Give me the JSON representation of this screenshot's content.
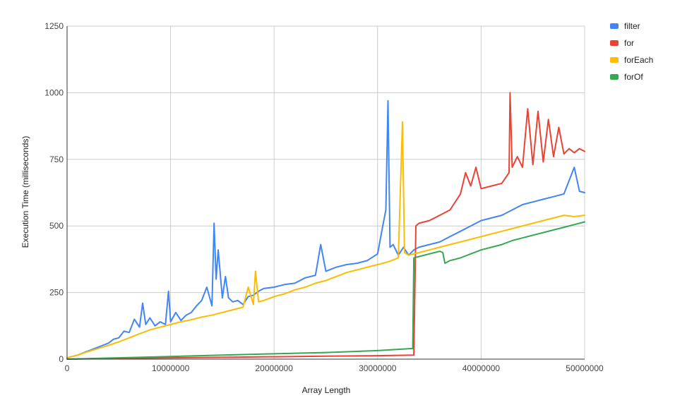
{
  "chart_data": {
    "type": "line",
    "xlabel": "Array Length",
    "ylabel": "Execution Time (milliseconds)",
    "xlim": [
      0,
      50000000
    ],
    "ylim": [
      0,
      1250
    ],
    "x_ticks": [
      0,
      10000000,
      20000000,
      30000000,
      40000000,
      50000000
    ],
    "x_tick_labels": [
      "0",
      "10000000",
      "20000000",
      "30000000",
      "40000000",
      "50000000"
    ],
    "y_ticks": [
      0,
      250,
      500,
      750,
      1000,
      1250
    ],
    "y_tick_labels": [
      "0",
      "250",
      "500",
      "750",
      "1000",
      "1250"
    ],
    "grid": true,
    "legend_position": "top-right",
    "series": [
      {
        "name": "filter",
        "color": "#4285F4",
        "points": [
          [
            0,
            5
          ],
          [
            1000000,
            15
          ],
          [
            2000000,
            30
          ],
          [
            3000000,
            45
          ],
          [
            4000000,
            60
          ],
          [
            4500000,
            75
          ],
          [
            5000000,
            80
          ],
          [
            5500000,
            105
          ],
          [
            6000000,
            100
          ],
          [
            6500000,
            150
          ],
          [
            7000000,
            120
          ],
          [
            7300000,
            210
          ],
          [
            7600000,
            130
          ],
          [
            8000000,
            155
          ],
          [
            8500000,
            125
          ],
          [
            9000000,
            140
          ],
          [
            9500000,
            130
          ],
          [
            9800000,
            255
          ],
          [
            10000000,
            140
          ],
          [
            10500000,
            175
          ],
          [
            11000000,
            145
          ],
          [
            11500000,
            165
          ],
          [
            12000000,
            175
          ],
          [
            12500000,
            200
          ],
          [
            13000000,
            220
          ],
          [
            13500000,
            270
          ],
          [
            14000000,
            200
          ],
          [
            14200000,
            510
          ],
          [
            14400000,
            300
          ],
          [
            14600000,
            410
          ],
          [
            15000000,
            230
          ],
          [
            15300000,
            310
          ],
          [
            15600000,
            230
          ],
          [
            16000000,
            215
          ],
          [
            16500000,
            220
          ],
          [
            17000000,
            205
          ],
          [
            17500000,
            235
          ],
          [
            18000000,
            240
          ],
          [
            18500000,
            255
          ],
          [
            19000000,
            265
          ],
          [
            20000000,
            270
          ],
          [
            21000000,
            280
          ],
          [
            22000000,
            285
          ],
          [
            23000000,
            305
          ],
          [
            24000000,
            315
          ],
          [
            24500000,
            430
          ],
          [
            25000000,
            330
          ],
          [
            26000000,
            345
          ],
          [
            27000000,
            355
          ],
          [
            28000000,
            360
          ],
          [
            29000000,
            370
          ],
          [
            30000000,
            395
          ],
          [
            30500000,
            500
          ],
          [
            30800000,
            560
          ],
          [
            31000000,
            970
          ],
          [
            31200000,
            420
          ],
          [
            31500000,
            430
          ],
          [
            32000000,
            390
          ],
          [
            32500000,
            420
          ],
          [
            33000000,
            390
          ],
          [
            33500000,
            410
          ],
          [
            34000000,
            420
          ],
          [
            35000000,
            430
          ],
          [
            36000000,
            440
          ],
          [
            37000000,
            460
          ],
          [
            38000000,
            480
          ],
          [
            39000000,
            500
          ],
          [
            40000000,
            520
          ],
          [
            41000000,
            530
          ],
          [
            42000000,
            540
          ],
          [
            43000000,
            560
          ],
          [
            44000000,
            580
          ],
          [
            45000000,
            590
          ],
          [
            46000000,
            600
          ],
          [
            47000000,
            610
          ],
          [
            48000000,
            620
          ],
          [
            49000000,
            720
          ],
          [
            49500000,
            630
          ],
          [
            50000000,
            625
          ]
        ]
      },
      {
        "name": "for",
        "color": "#EA4335",
        "points": [
          [
            0,
            0
          ],
          [
            5000000,
            3
          ],
          [
            10000000,
            5
          ],
          [
            15000000,
            7
          ],
          [
            20000000,
            9
          ],
          [
            25000000,
            11
          ],
          [
            30000000,
            13
          ],
          [
            33500000,
            15
          ],
          [
            33700000,
            500
          ],
          [
            34000000,
            510
          ],
          [
            35000000,
            520
          ],
          [
            36000000,
            540
          ],
          [
            37000000,
            560
          ],
          [
            38000000,
            620
          ],
          [
            38500000,
            700
          ],
          [
            39000000,
            650
          ],
          [
            39500000,
            720
          ],
          [
            40000000,
            640
          ],
          [
            41000000,
            650
          ],
          [
            42000000,
            660
          ],
          [
            42700000,
            700
          ],
          [
            42800000,
            1000
          ],
          [
            43000000,
            720
          ],
          [
            43500000,
            760
          ],
          [
            44000000,
            720
          ],
          [
            44500000,
            940
          ],
          [
            45000000,
            730
          ],
          [
            45500000,
            930
          ],
          [
            46000000,
            740
          ],
          [
            46500000,
            900
          ],
          [
            47000000,
            760
          ],
          [
            47500000,
            870
          ],
          [
            48000000,
            770
          ],
          [
            48500000,
            790
          ],
          [
            49000000,
            775
          ],
          [
            49500000,
            790
          ],
          [
            50000000,
            780
          ]
        ]
      },
      {
        "name": "forEach",
        "color": "#FBBC04",
        "points": [
          [
            0,
            5
          ],
          [
            1000000,
            15
          ],
          [
            2000000,
            28
          ],
          [
            3000000,
            40
          ],
          [
            4000000,
            52
          ],
          [
            5000000,
            65
          ],
          [
            6000000,
            80
          ],
          [
            7000000,
            95
          ],
          [
            8000000,
            110
          ],
          [
            9000000,
            120
          ],
          [
            10000000,
            130
          ],
          [
            11000000,
            140
          ],
          [
            12000000,
            148
          ],
          [
            13000000,
            158
          ],
          [
            14000000,
            165
          ],
          [
            15000000,
            175
          ],
          [
            16000000,
            185
          ],
          [
            17000000,
            195
          ],
          [
            17500000,
            270
          ],
          [
            18000000,
            205
          ],
          [
            18200000,
            330
          ],
          [
            18500000,
            215
          ],
          [
            19000000,
            220
          ],
          [
            20000000,
            235
          ],
          [
            21000000,
            245
          ],
          [
            22000000,
            260
          ],
          [
            23000000,
            270
          ],
          [
            24000000,
            285
          ],
          [
            25000000,
            295
          ],
          [
            26000000,
            310
          ],
          [
            27000000,
            325
          ],
          [
            28000000,
            335
          ],
          [
            29000000,
            345
          ],
          [
            30000000,
            355
          ],
          [
            31000000,
            365
          ],
          [
            32000000,
            380
          ],
          [
            32400000,
            890
          ],
          [
            32600000,
            400
          ],
          [
            33000000,
            390
          ],
          [
            34000000,
            400
          ],
          [
            35000000,
            410
          ],
          [
            36000000,
            420
          ],
          [
            37000000,
            430
          ],
          [
            38000000,
            440
          ],
          [
            39000000,
            450
          ],
          [
            40000000,
            460
          ],
          [
            41000000,
            470
          ],
          [
            42000000,
            480
          ],
          [
            43000000,
            490
          ],
          [
            44000000,
            500
          ],
          [
            45000000,
            510
          ],
          [
            46000000,
            520
          ],
          [
            47000000,
            530
          ],
          [
            48000000,
            540
          ],
          [
            49000000,
            535
          ],
          [
            50000000,
            540
          ]
        ]
      },
      {
        "name": "forOf",
        "color": "#34A853",
        "points": [
          [
            0,
            0
          ],
          [
            5000000,
            5
          ],
          [
            10000000,
            10
          ],
          [
            15000000,
            15
          ],
          [
            20000000,
            20
          ],
          [
            25000000,
            25
          ],
          [
            30000000,
            32
          ],
          [
            33400000,
            40
          ],
          [
            33500000,
            380
          ],
          [
            34000000,
            385
          ],
          [
            35000000,
            395
          ],
          [
            36000000,
            405
          ],
          [
            36300000,
            400
          ],
          [
            36500000,
            360
          ],
          [
            37000000,
            370
          ],
          [
            38000000,
            380
          ],
          [
            39000000,
            395
          ],
          [
            40000000,
            410
          ],
          [
            41000000,
            420
          ],
          [
            42000000,
            430
          ],
          [
            43000000,
            445
          ],
          [
            44000000,
            455
          ],
          [
            45000000,
            465
          ],
          [
            46000000,
            475
          ],
          [
            47000000,
            485
          ],
          [
            48000000,
            495
          ],
          [
            49000000,
            505
          ],
          [
            50000000,
            515
          ]
        ]
      }
    ]
  }
}
